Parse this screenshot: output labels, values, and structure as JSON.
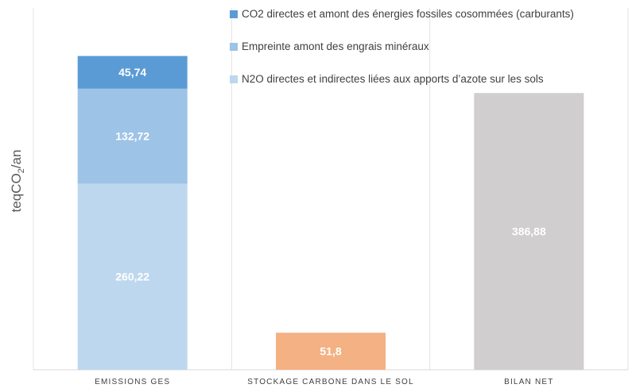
{
  "chart_data": {
    "type": "bar",
    "stacked": true,
    "waterfall": true,
    "categories": [
      "EMISSIONS GES",
      "STOCKAGE CARBONE DANS LE SOL",
      "BILAN NET"
    ],
    "ylabel": {
      "main": "teqCO",
      "sub": "2",
      "suffix": "/an"
    },
    "ylim": [
      0,
      450
    ],
    "grid": "vertical-separators",
    "legend_position": "top-center",
    "colors": {
      "co2": "#5b9bd5",
      "engrais": "#9dc3e6",
      "n2o": "#bdd7ee",
      "stockage": "#f4b183",
      "bilan": "#d0cece"
    },
    "series": [
      {
        "name": "CO2 directes et amont des énergies fossiles cosommées (carburants)",
        "color_key": "co2",
        "values": [
          45.74,
          null,
          null
        ],
        "labels": [
          "45,74",
          "",
          ""
        ]
      },
      {
        "name": "Empreinte amont des engrais minéraux",
        "color_key": "engrais",
        "values": [
          132.72,
          null,
          null
        ],
        "labels": [
          "132,72",
          "",
          ""
        ]
      },
      {
        "name": "N2O directes et indirectes liées aux apports d’azote sur les sols",
        "color_key": "n2o",
        "values": [
          260.22,
          null,
          null
        ],
        "labels": [
          "260,22",
          "",
          ""
        ]
      }
    ],
    "extra_bars": [
      {
        "category_index": 1,
        "value": 51.8,
        "label": "51,8",
        "color_key": "stockage"
      },
      {
        "category_index": 2,
        "value": 386.88,
        "label": "386,88",
        "color_key": "bilan"
      }
    ],
    "legend": [
      {
        "label": "CO2 directes et amont des énergies fossiles cosommées (carburants)",
        "color_key": "co2"
      },
      {
        "label": "Empreinte amont des engrais minéraux",
        "color_key": "engrais"
      },
      {
        "label": "N2O directes et indirectes liées aux apports d’azote sur les sols",
        "color_key": "n2o"
      }
    ]
  }
}
